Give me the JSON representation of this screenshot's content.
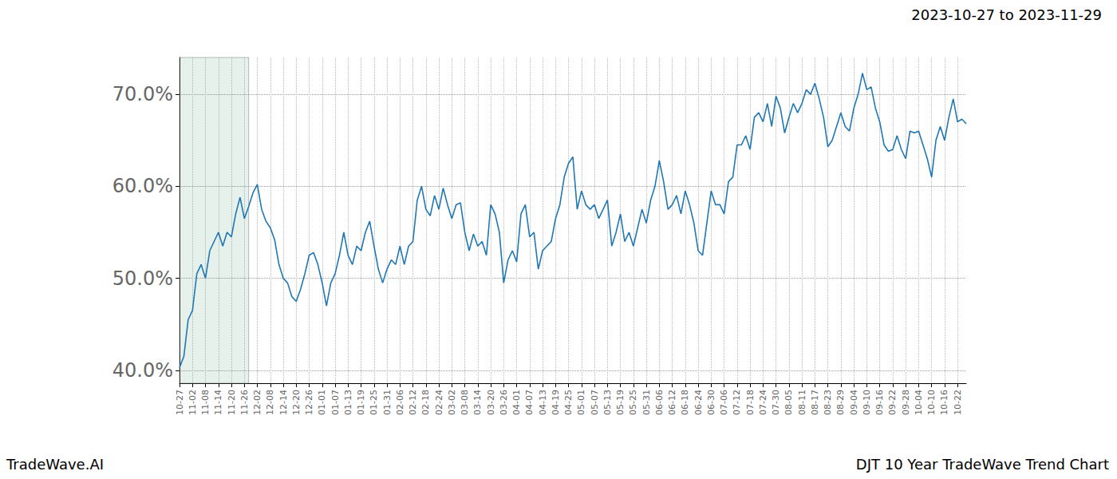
{
  "chart_data": {
    "type": "line",
    "title": "2023-10-27 to 2023-11-29",
    "annotations": [
      "TradeWave.AI",
      "DJT 10 Year TradeWave Trend Chart"
    ],
    "categories": [
      "10-27",
      null,
      null,
      "11-02",
      null,
      null,
      "11-08",
      null,
      null,
      "11-14",
      null,
      null,
      "11-20",
      null,
      null,
      "11-26",
      null,
      null,
      "12-02",
      null,
      null,
      "12-08",
      null,
      null,
      "12-14",
      null,
      null,
      "12-20",
      null,
      null,
      "12-26",
      null,
      null,
      "01-01",
      null,
      null,
      "01-07",
      null,
      null,
      "01-13",
      null,
      null,
      "01-19",
      null,
      null,
      "01-25",
      null,
      null,
      "01-31",
      null,
      null,
      "02-06",
      null,
      null,
      "02-12",
      null,
      null,
      "02-18",
      null,
      null,
      "02-24",
      null,
      null,
      "03-02",
      null,
      null,
      "03-08",
      null,
      null,
      "03-14",
      null,
      null,
      "03-20",
      null,
      null,
      "03-26",
      null,
      null,
      "04-01",
      null,
      null,
      "04-07",
      null,
      null,
      "04-13",
      null,
      null,
      "04-19",
      null,
      null,
      "04-25",
      null,
      null,
      "05-01",
      null,
      null,
      "05-07",
      null,
      null,
      "05-13",
      null,
      null,
      "05-19",
      null,
      null,
      "05-25",
      null,
      null,
      "05-31",
      null,
      null,
      "06-06",
      null,
      null,
      "06-12",
      null,
      null,
      "06-18",
      null,
      null,
      "06-24",
      null,
      null,
      "06-30",
      null,
      null,
      "07-06",
      null,
      null,
      "07-12",
      null,
      null,
      "07-18",
      null,
      null,
      "07-24",
      null,
      null,
      "07-30",
      null,
      null,
      "08-05",
      null,
      null,
      "08-11",
      null,
      null,
      "08-17",
      null,
      null,
      "08-23",
      null,
      null,
      "08-29",
      null,
      null,
      "09-04",
      null,
      null,
      "09-10",
      null,
      null,
      "09-16",
      null,
      null,
      "09-22",
      null,
      null,
      "09-28",
      null,
      null,
      "10-04",
      null,
      null,
      "10-10",
      null,
      null,
      "10-16",
      null,
      null,
      "10-22",
      null,
      null
    ],
    "values": [
      40.3,
      41.5,
      45.5,
      46.5,
      50.5,
      51.5,
      50.0,
      53.0,
      54.0,
      55.0,
      53.5,
      55.0,
      54.5,
      57.0,
      58.8,
      56.5,
      57.8,
      59.3,
      60.2,
      57.5,
      56.2,
      55.5,
      54.2,
      51.5,
      50.0,
      49.5,
      48.0,
      47.5,
      48.8,
      50.5,
      52.5,
      52.8,
      51.5,
      49.5,
      47.0,
      49.5,
      50.5,
      52.5,
      55.0,
      52.5,
      51.5,
      53.5,
      53.0,
      55.0,
      56.2,
      53.5,
      51.0,
      49.5,
      51.0,
      52.0,
      51.5,
      53.5,
      51.5,
      53.5,
      54.0,
      58.5,
      60.0,
      57.5,
      56.8,
      59.0,
      57.5,
      59.8,
      58.0,
      56.5,
      58.0,
      58.2,
      55.0,
      53.0,
      54.8,
      53.5,
      54.0,
      52.5,
      58.0,
      57.0,
      55.0,
      49.5,
      52.0,
      53.0,
      51.8,
      57.0,
      58.0,
      54.5,
      55.0,
      51.0,
      53.0,
      53.5,
      54.0,
      56.5,
      58.0,
      61.0,
      62.5,
      63.2,
      57.5,
      59.5,
      58.0,
      57.5,
      58.0,
      56.5,
      57.5,
      58.5,
      53.5,
      55.0,
      57.0,
      54.0,
      55.0,
      53.5,
      55.5,
      57.5,
      56.0,
      58.5,
      60.0,
      62.8,
      60.5,
      57.5,
      58.0,
      59.0,
      57.0,
      59.5,
      58.0,
      56.0,
      53.0,
      52.5,
      56.0,
      59.5,
      58.0,
      58.0,
      57.0,
      60.5,
      61.0,
      64.5,
      64.5,
      65.5,
      64.0,
      67.5,
      68.0,
      67.0,
      69.0,
      66.5,
      69.8,
      68.5,
      65.8,
      67.5,
      69.0,
      68.0,
      69.0,
      70.5,
      70.0,
      71.2,
      69.5,
      67.5,
      64.3,
      65.0,
      66.5,
      68.0,
      66.5,
      66.0,
      68.5,
      70.0,
      72.3,
      70.5,
      70.8,
      68.5,
      67.0,
      64.5,
      63.8,
      64.0,
      65.5,
      64.0,
      63.0,
      66.0,
      65.8,
      66.0,
      64.5,
      63.0,
      61.0,
      65.0,
      66.5,
      65.0,
      67.5,
      69.5,
      67.0,
      67.3,
      66.8
    ],
    "color": "#1f77b4",
    "highlight": {
      "from": 0,
      "to": 16
    },
    "ylim": [
      38.6,
      74.0
    ],
    "yticks": [
      {
        "value": 40,
        "label": "40.0%"
      },
      {
        "value": 50,
        "label": "50.0%"
      },
      {
        "value": 60,
        "label": "60.0%"
      },
      {
        "value": 70,
        "label": "70.0%"
      }
    ],
    "grid": true
  }
}
